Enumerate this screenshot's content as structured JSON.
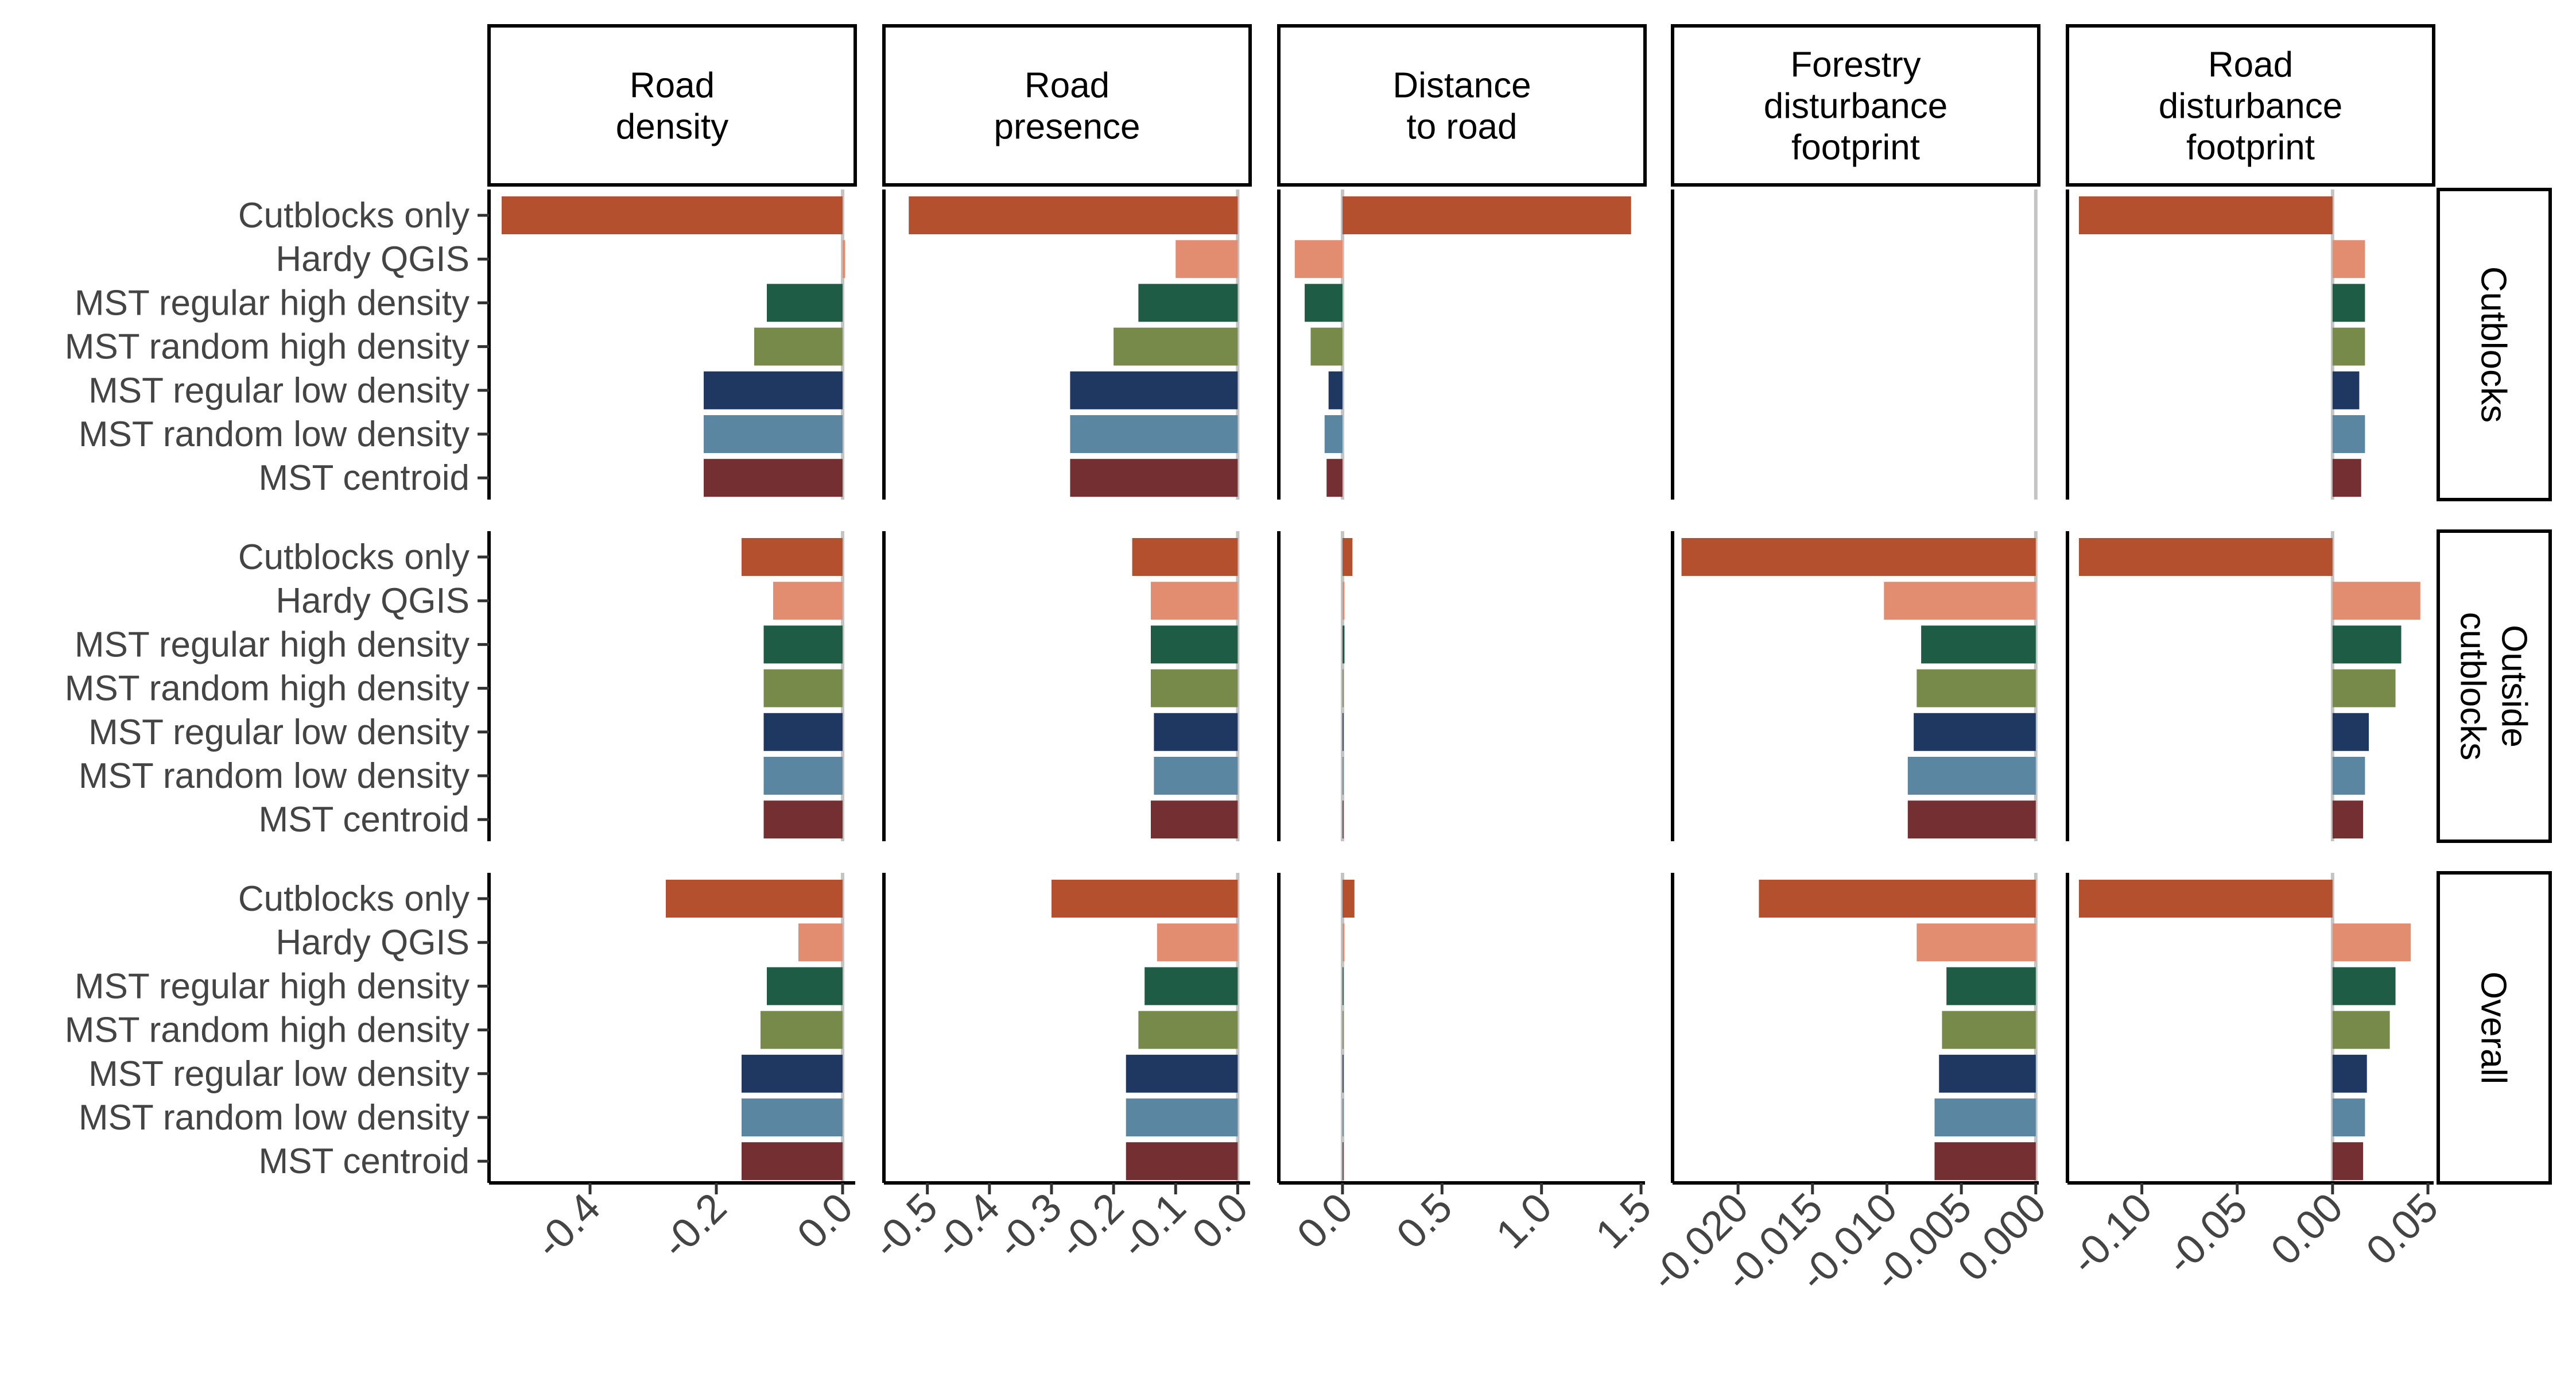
{
  "chart_data": {
    "type": "bar",
    "orientation": "horizontal",
    "facets": {
      "columns": [
        {
          "id": "road_density",
          "label": [
            "Road",
            "density"
          ],
          "xlim": [
            -0.56,
            0.02
          ],
          "ticks": [
            "-0.4",
            "-0.2",
            "0.0"
          ],
          "tick_values": [
            -0.4,
            -0.2,
            0.0
          ]
        },
        {
          "id": "road_presence",
          "label": [
            "Road",
            "presence"
          ],
          "xlim": [
            -0.57,
            0.02
          ],
          "ticks": [
            "-0.5",
            "-0.4",
            "-0.3",
            "-0.2",
            "-0.1",
            "0.0"
          ],
          "tick_values": [
            -0.5,
            -0.4,
            -0.3,
            -0.2,
            -0.1,
            0.0
          ]
        },
        {
          "id": "distance_to_road",
          "label": [
            "Distance",
            "to road"
          ],
          "xlim": [
            -0.32,
            1.52
          ],
          "ticks": [
            "0.0",
            "0.5",
            "1.0",
            "1.5"
          ],
          "tick_values": [
            0.0,
            0.5,
            1.0,
            1.5
          ]
        },
        {
          "id": "forestry_disturbance_footprint",
          "label": [
            "Forestry",
            "disturbance",
            "footprint"
          ],
          "xlim": [
            -0.0244,
            0.0002
          ],
          "ticks": [
            "-0.020",
            "-0.015",
            "-0.010",
            "-0.005",
            "0.000"
          ],
          "tick_values": [
            -0.02,
            -0.015,
            -0.01,
            -0.005,
            0.0
          ]
        },
        {
          "id": "road_disturbance_footprint",
          "label": [
            "Road",
            "disturbance",
            "footprint"
          ],
          "xlim": [
            -0.139,
            0.053
          ],
          "ticks": [
            "-0.10",
            "-0.05",
            "0.00",
            "0.05"
          ],
          "tick_values": [
            -0.1,
            -0.05,
            0.0,
            0.05
          ]
        }
      ],
      "rows": [
        {
          "id": "cutblocks",
          "label": [
            "Cutblocks"
          ]
        },
        {
          "id": "outside_cutblocks",
          "label": [
            "Outside",
            "cutblocks"
          ]
        },
        {
          "id": "overall",
          "label": [
            "Overall"
          ]
        }
      ]
    },
    "categories": [
      "Cutblocks only",
      "Hardy QGIS",
      "MST regular high density",
      "MST random high density",
      "MST regular low density",
      "MST random low density",
      "MST centroid"
    ],
    "category_colors": [
      "#b5502e",
      "#e38d70",
      "#1e5c45",
      "#778a4a",
      "#1e3862",
      "#5b86a2",
      "#732f32"
    ],
    "values": {
      "cutblocks": {
        "road_density": [
          -0.54,
          0.004,
          -0.12,
          -0.14,
          -0.22,
          -0.22,
          -0.22
        ],
        "road_presence": [
          -0.53,
          -0.1,
          -0.16,
          -0.2,
          -0.27,
          -0.27,
          -0.27
        ],
        "distance_to_road": [
          1.45,
          -0.24,
          -0.19,
          -0.16,
          -0.07,
          -0.09,
          -0.08
        ],
        "forestry_disturbance_footprint": [
          null,
          null,
          null,
          null,
          null,
          null,
          null
        ],
        "road_disturbance_footprint": [
          -0.133,
          0.017,
          0.017,
          0.017,
          0.014,
          0.017,
          0.015
        ]
      },
      "outside_cutblocks": {
        "road_density": [
          -0.16,
          -0.11,
          -0.125,
          -0.125,
          -0.125,
          -0.125,
          -0.125
        ],
        "road_presence": [
          -0.17,
          -0.14,
          -0.14,
          -0.14,
          -0.135,
          -0.135,
          -0.14
        ],
        "distance_to_road": [
          0.05,
          0.01,
          0.01,
          0.005,
          0.005,
          0.005,
          0.005
        ],
        "forestry_disturbance_footprint": [
          -0.0238,
          -0.0102,
          -0.0077,
          -0.008,
          -0.0082,
          -0.0086,
          -0.0086
        ],
        "road_disturbance_footprint": [
          -0.133,
          0.046,
          0.036,
          0.033,
          0.019,
          0.017,
          0.016
        ]
      },
      "overall": {
        "road_density": [
          -0.28,
          -0.07,
          -0.12,
          -0.13,
          -0.16,
          -0.16,
          -0.16
        ],
        "road_presence": [
          -0.3,
          -0.13,
          -0.15,
          -0.16,
          -0.18,
          -0.18,
          -0.18
        ],
        "distance_to_road": [
          0.06,
          0.01,
          0.005,
          0.005,
          0.005,
          0.005,
          0.005
        ],
        "forestry_disturbance_footprint": [
          -0.0186,
          -0.008,
          -0.006,
          -0.0063,
          -0.0065,
          -0.0068,
          -0.0068
        ],
        "road_disturbance_footprint": [
          -0.133,
          0.041,
          0.033,
          0.03,
          0.018,
          0.017,
          0.016
        ]
      }
    },
    "title": "",
    "xlabel": "",
    "ylabel": "",
    "grid": false,
    "legend": "none",
    "zero_line_color": "#c4c4c4"
  }
}
